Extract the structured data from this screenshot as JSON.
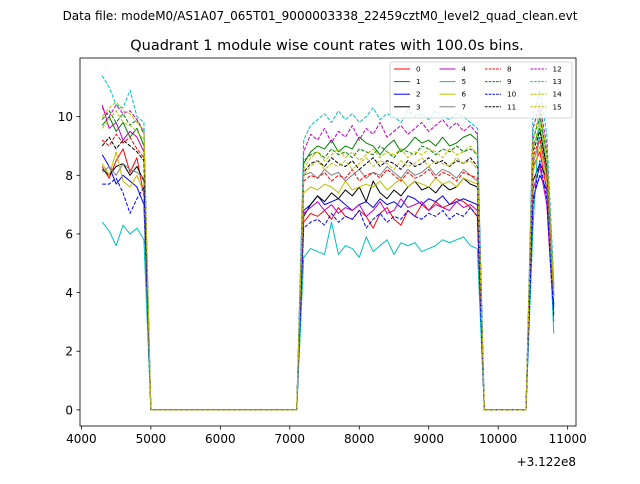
{
  "suptitle": "Data file: modeM0/AS1A07_065T01_9000003338_22459cztM0_level2_quad_clean.evt",
  "chart_data": {
    "type": "line",
    "title": "Quadrant 1 module wise count rates with 100.0s bins.",
    "xlabel": "",
    "ylabel": "",
    "x_offset_label": "+3.122e8",
    "xlim": [
      3980,
      11120
    ],
    "ylim": [
      -0.55,
      12.0
    ],
    "xticks": [
      4000,
      5000,
      6000,
      7000,
      8000,
      9000,
      10000,
      11000
    ],
    "yticks": [
      0,
      2,
      4,
      6,
      8,
      10
    ],
    "legend_position": "top-right",
    "x": [
      4300,
      4400,
      4500,
      4600,
      4700,
      4800,
      4900,
      5000,
      5100,
      5200,
      5300,
      5400,
      5500,
      5600,
      5700,
      5800,
      5900,
      6000,
      6100,
      6200,
      6300,
      6400,
      6500,
      6600,
      6700,
      6800,
      6900,
      7000,
      7100,
      7200,
      7300,
      7400,
      7500,
      7600,
      7700,
      7800,
      7900,
      8000,
      8100,
      8200,
      8300,
      8400,
      8500,
      8600,
      8700,
      8800,
      8900,
      9000,
      9100,
      9200,
      9300,
      9400,
      9500,
      9600,
      9700,
      9800,
      9900,
      10000,
      10100,
      10200,
      10300,
      10400,
      10500,
      10600,
      10700,
      10800
    ],
    "active_segments": [
      {
        "from": 0,
        "to": 7
      },
      {
        "from": 29,
        "to": 54
      },
      {
        "from": 62,
        "to": 65
      }
    ],
    "series": [
      {
        "name": "0",
        "color": "#ff0000",
        "dash": "solid",
        "values": [
          8.3,
          7.9,
          8.5,
          8.9,
          8.1,
          8.6,
          7.3,
          0,
          0,
          0,
          0,
          0,
          0,
          0,
          0,
          0,
          0,
          0,
          0,
          0,
          0,
          0,
          0,
          0,
          0,
          0,
          0,
          0,
          0,
          6.4,
          6.7,
          6.6,
          6.8,
          6.5,
          6.9,
          6.6,
          6.5,
          6.8,
          6.6,
          6.2,
          6.7,
          6.9,
          6.5,
          6.3,
          6.8,
          6.6,
          7.0,
          6.8,
          7.1,
          6.9,
          7.0,
          7.2,
          7.1,
          6.9,
          6.6,
          0,
          0,
          0,
          0,
          0,
          0,
          0,
          8.3,
          8.8,
          7.5,
          3.3
        ]
      },
      {
        "name": "1",
        "color": "#008000",
        "dash": "solid",
        "values": [
          9.7,
          10.0,
          9.5,
          9.8,
          9.3,
          9.6,
          9.0,
          0,
          0,
          0,
          0,
          0,
          0,
          0,
          0,
          0,
          0,
          0,
          0,
          0,
          0,
          0,
          0,
          0,
          0,
          0,
          0,
          0,
          0,
          8.4,
          8.8,
          9.0,
          8.9,
          9.2,
          8.8,
          9.0,
          8.9,
          9.3,
          9.1,
          9.0,
          8.7,
          9.0,
          9.2,
          8.8,
          9.0,
          9.3,
          9.1,
          9.2,
          9.0,
          9.3,
          9.0,
          9.1,
          9.3,
          9.4,
          9.2,
          0,
          0,
          0,
          0,
          0,
          0,
          0,
          9.0,
          9.6,
          8.2,
          3.6
        ]
      },
      {
        "name": "2",
        "color": "#0000ff",
        "dash": "solid",
        "values": [
          8.7,
          8.3,
          7.7,
          8.0,
          7.8,
          7.6,
          7.0,
          0,
          0,
          0,
          0,
          0,
          0,
          0,
          0,
          0,
          0,
          0,
          0,
          0,
          0,
          0,
          0,
          0,
          0,
          0,
          0,
          0,
          0,
          6.8,
          7.0,
          7.3,
          7.0,
          7.1,
          7.2,
          7.0,
          6.8,
          7.0,
          7.1,
          6.9,
          7.2,
          7.0,
          7.1,
          6.9,
          7.3,
          7.2,
          7.0,
          7.2,
          7.1,
          7.3,
          7.0,
          7.1,
          7.2,
          7.1,
          7.0,
          0,
          0,
          0,
          0,
          0,
          0,
          0,
          7.2,
          8.0,
          7.5,
          3.5
        ]
      },
      {
        "name": "3",
        "color": "#000000",
        "dash": "solid",
        "values": [
          8.2,
          8.0,
          8.3,
          8.4,
          8.0,
          8.3,
          7.8,
          0,
          0,
          0,
          0,
          0,
          0,
          0,
          0,
          0,
          0,
          0,
          0,
          0,
          0,
          0,
          0,
          0,
          0,
          0,
          0,
          0,
          0,
          6.6,
          7.0,
          7.3,
          7.1,
          7.4,
          7.2,
          7.5,
          7.3,
          7.6,
          7.1,
          7.8,
          7.4,
          7.2,
          7.5,
          7.3,
          7.6,
          7.8,
          7.5,
          7.6,
          7.4,
          7.7,
          7.5,
          7.6,
          7.9,
          7.7,
          7.6,
          0,
          0,
          0,
          0,
          0,
          0,
          0,
          7.8,
          8.4,
          7.9,
          3.9
        ]
      },
      {
        "name": "4",
        "color": "#bf00bf",
        "dash": "solid",
        "values": [
          10.4,
          9.6,
          9.8,
          9.2,
          9.5,
          9.3,
          8.8,
          0,
          0,
          0,
          0,
          0,
          0,
          0,
          0,
          0,
          0,
          0,
          0,
          0,
          0,
          0,
          0,
          0,
          0,
          0,
          0,
          0,
          0,
          6.7,
          6.9,
          7.1,
          6.8,
          7.0,
          6.7,
          6.9,
          6.8,
          7.0,
          6.6,
          6.8,
          7.1,
          6.7,
          6.8,
          7.2,
          6.9,
          7.0,
          7.1,
          6.8,
          7.0,
          6.9,
          6.8,
          7.1,
          6.9,
          7.0,
          6.8,
          0,
          0,
          0,
          0,
          0,
          0,
          0,
          7.5,
          8.3,
          7.0,
          3.0
        ]
      },
      {
        "name": "5",
        "color": "#00bfbf",
        "dash": "solid",
        "values": [
          6.4,
          6.1,
          5.6,
          6.3,
          6.0,
          6.2,
          5.8,
          0,
          0,
          0,
          0,
          0,
          0,
          0,
          0,
          0,
          0,
          0,
          0,
          0,
          0,
          0,
          0,
          0,
          0,
          0,
          0,
          0,
          0,
          5.2,
          5.5,
          5.4,
          5.3,
          6.4,
          5.3,
          5.6,
          5.5,
          5.2,
          5.9,
          5.4,
          5.6,
          5.8,
          5.3,
          5.7,
          5.6,
          5.7,
          5.4,
          5.5,
          5.6,
          5.8,
          5.7,
          5.8,
          5.9,
          5.6,
          5.5,
          0,
          0,
          0,
          0,
          0,
          0,
          0,
          6.2,
          10.2,
          8.2,
          2.6
        ]
      },
      {
        "name": "6",
        "color": "#bfbf00",
        "dash": "solid",
        "values": [
          8.4,
          8.0,
          8.8,
          7.8,
          7.6,
          8.0,
          7.4,
          0,
          0,
          0,
          0,
          0,
          0,
          0,
          0,
          0,
          0,
          0,
          0,
          0,
          0,
          0,
          0,
          0,
          0,
          0,
          0,
          0,
          0,
          7.4,
          7.6,
          7.5,
          7.7,
          7.6,
          7.4,
          7.8,
          7.5,
          7.6,
          7.7,
          7.6,
          7.8,
          7.5,
          7.7,
          7.9,
          7.6,
          7.8,
          7.7,
          7.6,
          7.9,
          7.7,
          7.8,
          7.6,
          7.9,
          7.8,
          7.7,
          0,
          0,
          0,
          0,
          0,
          0,
          0,
          8.1,
          9.0,
          7.8,
          3.8
        ]
      },
      {
        "name": "7",
        "color": "#808080",
        "dash": "solid",
        "values": [
          8.1,
          8.3,
          8.0,
          8.4,
          8.2,
          8.1,
          7.9,
          0,
          0,
          0,
          0,
          0,
          0,
          0,
          0,
          0,
          0,
          0,
          0,
          0,
          0,
          0,
          0,
          0,
          0,
          0,
          0,
          0,
          0,
          8.0,
          8.1,
          7.9,
          8.2,
          8.0,
          8.1,
          7.8,
          8.0,
          8.2,
          7.9,
          8.1,
          8.0,
          8.3,
          8.1,
          7.9,
          8.2,
          8.0,
          8.1,
          8.3,
          8.0,
          8.2,
          8.1,
          7.9,
          8.2,
          8.0,
          7.8,
          0,
          0,
          0,
          0,
          0,
          0,
          0,
          8.4,
          9.2,
          8.0,
          3.9
        ]
      },
      {
        "name": "8",
        "color": "#ff0000",
        "dash": "dashed",
        "values": [
          9.2,
          9.0,
          9.4,
          9.1,
          9.3,
          8.9,
          8.6,
          0,
          0,
          0,
          0,
          0,
          0,
          0,
          0,
          0,
          0,
          0,
          0,
          0,
          0,
          0,
          0,
          0,
          0,
          0,
          0,
          0,
          0,
          7.8,
          8.0,
          7.9,
          8.1,
          7.8,
          8.0,
          7.9,
          8.2,
          7.8,
          8.0,
          8.1,
          7.9,
          8.2,
          8.0,
          7.8,
          8.1,
          7.9,
          8.0,
          8.2,
          7.9,
          8.1,
          8.0,
          7.8,
          8.1,
          8.0,
          7.9,
          0,
          0,
          0,
          0,
          0,
          0,
          0,
          8.6,
          9.3,
          8.1,
          4.0
        ]
      },
      {
        "name": "9",
        "color": "#008000",
        "dash": "dashed",
        "values": [
          9.9,
          10.2,
          9.8,
          10.1,
          9.7,
          9.9,
          9.4,
          0,
          0,
          0,
          0,
          0,
          0,
          0,
          0,
          0,
          0,
          0,
          0,
          0,
          0,
          0,
          0,
          0,
          0,
          0,
          0,
          0,
          0,
          8.5,
          8.7,
          8.8,
          8.6,
          8.9,
          8.7,
          8.8,
          8.6,
          8.9,
          8.8,
          8.7,
          9.0,
          8.8,
          8.6,
          8.9,
          8.8,
          8.7,
          9.0,
          8.9,
          8.7,
          8.9,
          8.8,
          9.0,
          8.8,
          8.9,
          8.7,
          0,
          0,
          0,
          0,
          0,
          0,
          0,
          9.2,
          10.0,
          8.7,
          4.2
        ]
      },
      {
        "name": "10",
        "color": "#0000ff",
        "dash": "dashed",
        "values": [
          7.7,
          7.7,
          7.9,
          7.4,
          6.7,
          7.2,
          7.6,
          0,
          0,
          0,
          0,
          0,
          0,
          0,
          0,
          0,
          0,
          0,
          0,
          0,
          0,
          0,
          0,
          0,
          0,
          0,
          0,
          0,
          0,
          6.2,
          6.4,
          6.5,
          6.3,
          6.7,
          6.4,
          6.6,
          6.5,
          6.8,
          6.2,
          6.5,
          6.7,
          6.4,
          6.6,
          6.5,
          6.8,
          6.6,
          6.5,
          6.7,
          6.6,
          6.8,
          6.5,
          6.7,
          6.6,
          6.9,
          6.6,
          0,
          0,
          0,
          0,
          0,
          0,
          0,
          7.0,
          8.5,
          7.2,
          3.2
        ]
      },
      {
        "name": "11",
        "color": "#000000",
        "dash": "dashed",
        "values": [
          9.0,
          9.3,
          8.9,
          9.2,
          9.0,
          8.8,
          8.5,
          0,
          0,
          0,
          0,
          0,
          0,
          0,
          0,
          0,
          0,
          0,
          0,
          0,
          0,
          0,
          0,
          0,
          0,
          0,
          0,
          0,
          0,
          8.1,
          8.4,
          8.5,
          8.3,
          8.6,
          8.4,
          8.3,
          8.5,
          8.2,
          8.4,
          8.6,
          8.3,
          8.5,
          8.4,
          8.2,
          8.5,
          8.3,
          8.4,
          8.6,
          8.4,
          8.5,
          8.3,
          8.5,
          8.4,
          8.6,
          8.3,
          0,
          0,
          0,
          0,
          0,
          0,
          0,
          8.8,
          9.5,
          8.3,
          4.1
        ]
      },
      {
        "name": "12",
        "color": "#bf00bf",
        "dash": "dashed",
        "values": [
          10.3,
          10.0,
          10.4,
          10.1,
          10.2,
          9.9,
          9.5,
          0,
          0,
          0,
          0,
          0,
          0,
          0,
          0,
          0,
          0,
          0,
          0,
          0,
          0,
          0,
          0,
          0,
          0,
          0,
          0,
          0,
          0,
          8.8,
          9.4,
          9.2,
          9.6,
          9.1,
          9.5,
          9.3,
          9.7,
          9.2,
          9.6,
          9.4,
          9.8,
          9.3,
          9.5,
          9.7,
          9.4,
          9.6,
          9.8,
          9.5,
          9.7,
          9.9,
          9.6,
          9.8,
          9.5,
          9.7,
          9.4,
          0,
          0,
          0,
          0,
          0,
          0,
          0,
          9.6,
          10.4,
          9.0,
          4.3
        ]
      },
      {
        "name": "13",
        "color": "#00bfbf",
        "dash": "dashed",
        "values": [
          11.4,
          11.0,
          10.4,
          10.3,
          10.9,
          10.0,
          9.8,
          0,
          0,
          0,
          0,
          0,
          0,
          0,
          0,
          0,
          0,
          0,
          0,
          0,
          0,
          0,
          0,
          0,
          0,
          0,
          0,
          0,
          0,
          9.2,
          9.7,
          9.9,
          10.1,
          9.8,
          10.2,
          9.9,
          10.1,
          9.8,
          10.0,
          10.3,
          9.9,
          10.1,
          10.0,
          9.8,
          10.2,
          10.0,
          10.1,
          9.9,
          10.2,
          10.0,
          9.9,
          10.1,
          10.0,
          9.8,
          9.6,
          0,
          0,
          0,
          0,
          0,
          0,
          0,
          10.0,
          10.9,
          9.4,
          4.4
        ]
      },
      {
        "name": "14",
        "color": "#bfbf00",
        "dash": "dashed",
        "values": [
          10.0,
          10.3,
          10.5,
          10.2,
          10.1,
          9.8,
          9.5,
          0,
          0,
          0,
          0,
          0,
          0,
          0,
          0,
          0,
          0,
          0,
          0,
          0,
          0,
          0,
          0,
          0,
          0,
          0,
          0,
          0,
          0,
          8.2,
          8.6,
          8.8,
          8.5,
          8.7,
          8.9,
          8.6,
          8.8,
          8.5,
          8.7,
          8.9,
          8.6,
          8.8,
          8.7,
          8.9,
          8.6,
          8.8,
          8.7,
          8.9,
          8.8,
          8.6,
          8.9,
          8.7,
          8.8,
          9.0,
          8.7,
          0,
          0,
          0,
          0,
          0,
          0,
          0,
          9.2,
          10.2,
          8.8,
          4.1
        ]
      },
      {
        "name": "15",
        "color": "#bfbf00",
        "dash": "dashed",
        "values": [
          9.6,
          9.9,
          10.2,
          9.8,
          9.7,
          9.5,
          9.2,
          0,
          0,
          0,
          0,
          0,
          0,
          0,
          0,
          0,
          0,
          0,
          0,
          0,
          0,
          0,
          0,
          0,
          0,
          0,
          0,
          0,
          0,
          8.0,
          8.3,
          8.5,
          8.2,
          8.4,
          8.3,
          8.5,
          8.2,
          8.4,
          8.6,
          8.3,
          8.5,
          8.4,
          8.2,
          8.5,
          8.3,
          8.4,
          8.6,
          8.3,
          8.5,
          8.4,
          8.3,
          8.6,
          8.4,
          8.5,
          8.2,
          0,
          0,
          0,
          0,
          0,
          0,
          0,
          8.9,
          9.8,
          8.5,
          4.0
        ]
      }
    ]
  }
}
